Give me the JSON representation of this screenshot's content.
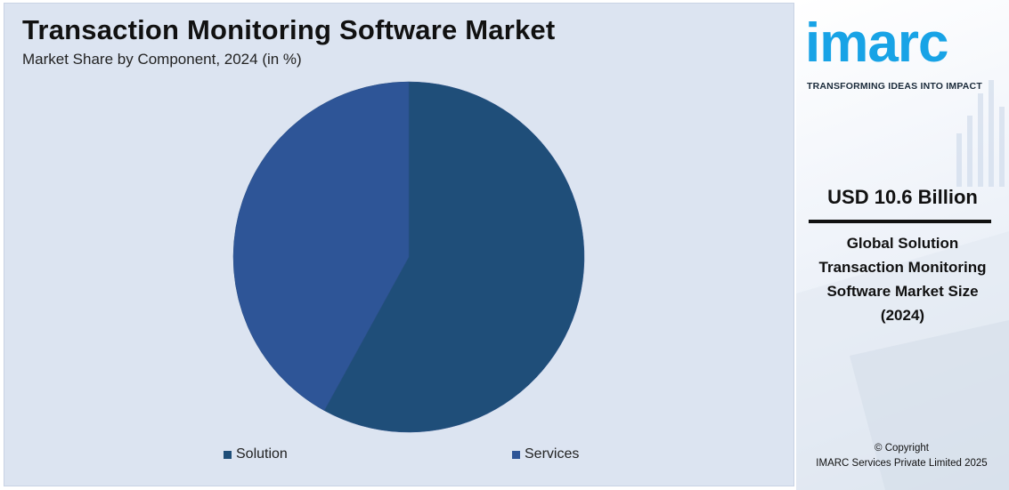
{
  "chart_data": {
    "type": "pie",
    "title": "Transaction Monitoring Software Market",
    "subtitle": "Market Share by Component, 2024 (in %)",
    "categories": [
      "Solution",
      "Services"
    ],
    "values": [
      58,
      42
    ],
    "colors": [
      "#1f4e79",
      "#2e5597"
    ],
    "legend_position": "bottom"
  },
  "sidebar": {
    "logo_text": "imarc",
    "logo_tagline": "TRANSFORMING IDEAS INTO IMPACT",
    "market_value": "USD 10.6 Billion",
    "market_description": "Global Solution Transaction Monitoring Software Market Size (2024)",
    "copyright_line1": "© Copyright",
    "copyright_line2": "IMARC Services Private Limited 2025",
    "accent_color": "#18a3e6"
  }
}
